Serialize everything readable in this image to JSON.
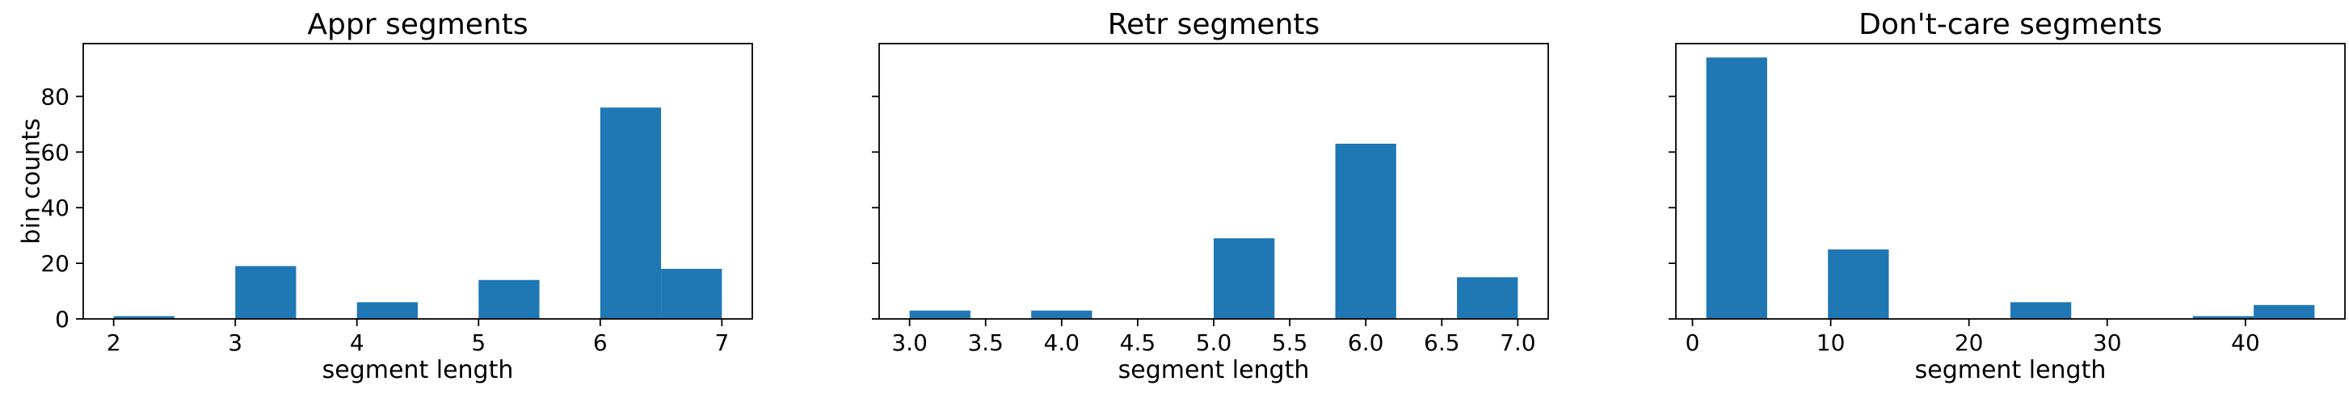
{
  "chart_data": [
    {
      "type": "bar",
      "title": "Appr segments",
      "xlabel": "segment length",
      "ylabel": "bin counts",
      "xlim": [
        1.75,
        7.25
      ],
      "ylim": [
        0,
        99
      ],
      "xticks": [
        2,
        3,
        4,
        5,
        6,
        7
      ],
      "xtick_labels": [
        "2",
        "3",
        "4",
        "5",
        "6",
        "7"
      ],
      "yticks": [
        0,
        20,
        40,
        60,
        80
      ],
      "ytick_labels": [
        "0",
        "20",
        "40",
        "60",
        "80"
      ],
      "bin_edges": [
        2.0,
        2.5,
        3.0,
        3.5,
        4.0,
        4.5,
        5.0,
        5.5,
        6.0,
        6.5,
        7.0
      ],
      "values": [
        1,
        0,
        19,
        0,
        6,
        0,
        14,
        0,
        76,
        18
      ],
      "color": "#1f77b4",
      "grid": false
    },
    {
      "type": "bar",
      "title": "Retr segments",
      "xlabel": "segment length",
      "ylabel": "",
      "xlim": [
        2.8,
        7.2
      ],
      "ylim": [
        0,
        99
      ],
      "xticks": [
        3.0,
        3.5,
        4.0,
        4.5,
        5.0,
        5.5,
        6.0,
        6.5,
        7.0
      ],
      "xtick_labels": [
        "3.0",
        "3.5",
        "4.0",
        "4.5",
        "5.0",
        "5.5",
        "6.0",
        "6.5",
        "7.0"
      ],
      "yticks": [
        0,
        20,
        40,
        60,
        80
      ],
      "ytick_labels": [
        "",
        "",
        "",
        "",
        ""
      ],
      "bin_edges": [
        3.0,
        3.4,
        3.8,
        4.2,
        4.6,
        5.0,
        5.4,
        5.8,
        6.2,
        6.6,
        7.0
      ],
      "values": [
        3,
        0,
        3,
        0,
        0,
        29,
        0,
        63,
        0,
        15
      ],
      "color": "#1f77b4",
      "grid": false
    },
    {
      "type": "bar",
      "title": "Don't-care segments",
      "xlabel": "segment length",
      "ylabel": "",
      "xlim": [
        -1.2,
        47.2
      ],
      "ylim": [
        0,
        99
      ],
      "xticks": [
        0,
        10,
        20,
        30,
        40
      ],
      "xtick_labels": [
        "0",
        "10",
        "20",
        "30",
        "40"
      ],
      "yticks": [
        0,
        20,
        40,
        60,
        80
      ],
      "ytick_labels": [
        "",
        "",
        "",
        "",
        ""
      ],
      "bin_edges": [
        1.0,
        5.4,
        9.8,
        14.2,
        18.6,
        23.0,
        27.4,
        31.8,
        36.2,
        40.6,
        45.0
      ],
      "values": [
        94,
        0,
        25,
        0,
        0,
        6,
        0,
        0,
        1,
        5
      ],
      "color": "#1f77b4",
      "grid": false
    }
  ]
}
